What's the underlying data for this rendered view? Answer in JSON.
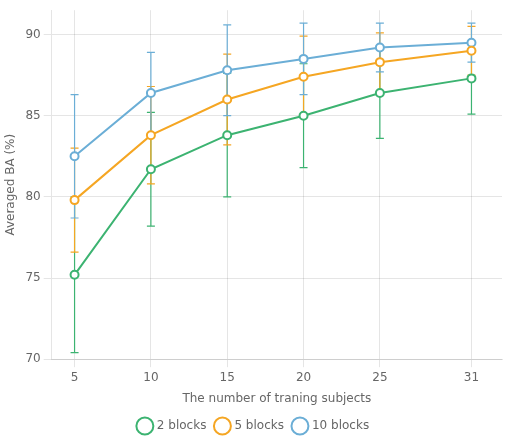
{
  "chart_data": {
    "type": "line",
    "x": [
      5,
      10,
      15,
      20,
      25,
      31
    ],
    "series": [
      {
        "name": "2 blocks",
        "color": "#3cb371",
        "values": [
          75.2,
          81.7,
          83.8,
          85.0,
          86.4,
          87.3
        ],
        "yerr": [
          4.8,
          3.5,
          3.8,
          3.2,
          2.8,
          2.2
        ]
      },
      {
        "name": "5 blocks",
        "color": "#f5a623",
        "values": [
          79.8,
          83.8,
          86.0,
          87.4,
          88.3,
          89.0
        ],
        "yerr": [
          3.2,
          3.0,
          2.8,
          2.5,
          1.8,
          1.5
        ]
      },
      {
        "name": "10 blocks",
        "color": "#6baed6",
        "values": [
          82.5,
          86.4,
          87.8,
          88.5,
          89.2,
          89.5
        ],
        "yerr": [
          3.8,
          2.5,
          2.8,
          2.2,
          1.5,
          1.2
        ]
      }
    ],
    "xlabel": "The number of traning subjects",
    "ylabel": "Averaged BA (%)",
    "xlim": [
      3.5,
      33
    ],
    "ylim": [
      70,
      91.5
    ],
    "xticks": [
      5,
      10,
      15,
      20,
      25,
      31
    ],
    "yticks": [
      70,
      75,
      80,
      85,
      90
    ],
    "grid": true,
    "legend": "bottom",
    "marker": "circle"
  }
}
